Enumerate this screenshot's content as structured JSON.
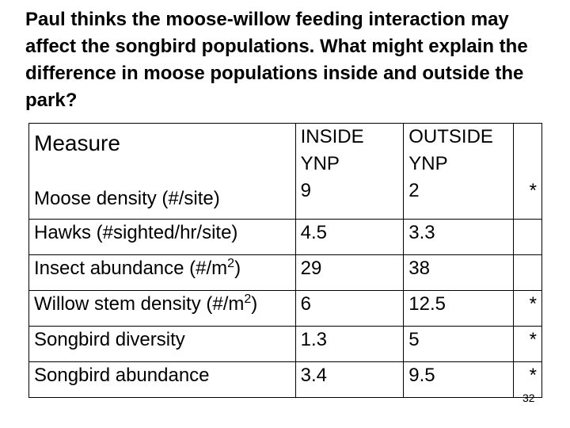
{
  "question": "Paul thinks the moose-willow feeding interaction may affect the songbird populations. What might explain the difference in moose populations inside and outside the park?",
  "table": {
    "header": {
      "measure": "Measure",
      "inside_line1": "INSIDE",
      "inside_line2": "YNP",
      "outside_line1": "OUTSIDE",
      "outside_line2": "YNP"
    },
    "rows": [
      {
        "label": "Moose density (#/site)",
        "label_sup": "",
        "label_suffix": "",
        "inside": "9",
        "outside": "2",
        "sig": "*"
      },
      {
        "label": "Hawks (#sighted/hr/site)",
        "label_sup": "",
        "label_suffix": "",
        "inside": "4.5",
        "outside": "3.3",
        "sig": ""
      },
      {
        "label": "Insect abundance (#/m",
        "label_sup": "2",
        "label_suffix": ")",
        "inside": "29",
        "outside": "38",
        "sig": ""
      },
      {
        "label": "Willow stem density (#/m",
        "label_sup": "2",
        "label_suffix": ")",
        "inside": "6",
        "outside": "12.5",
        "sig": "*"
      },
      {
        "label": "Songbird diversity",
        "label_sup": "",
        "label_suffix": "",
        "inside": "1.3",
        "outside": "5",
        "sig": "*"
      },
      {
        "label": "Songbird abundance",
        "label_sup": "",
        "label_suffix": "",
        "inside": "3.4",
        "outside": "9.5",
        "sig": "*"
      }
    ]
  },
  "page_number": "32"
}
